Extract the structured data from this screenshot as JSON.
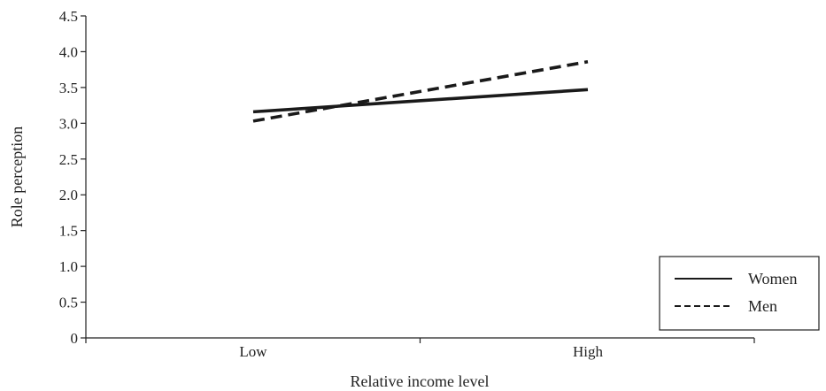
{
  "chart_data": {
    "type": "line",
    "title": "",
    "xlabel": "Relative income level",
    "ylabel": "Role perception",
    "categories": [
      "Low",
      "High"
    ],
    "y_ticks": [
      "0",
      "0.5",
      "1.0",
      "1.5",
      "2.0",
      "2.5",
      "3.0",
      "3.5",
      "4.0",
      "4.5"
    ],
    "ylim": [
      0,
      4.5
    ],
    "grid": false,
    "legend_position": "bottom-right",
    "series": [
      {
        "name": "Women",
        "values": [
          3.16,
          3.47
        ],
        "line_style": "solid",
        "color": "#1a1a1a"
      },
      {
        "name": "Men",
        "values": [
          3.03,
          3.86
        ],
        "line_style": "dashed",
        "color": "#1a1a1a"
      }
    ]
  }
}
